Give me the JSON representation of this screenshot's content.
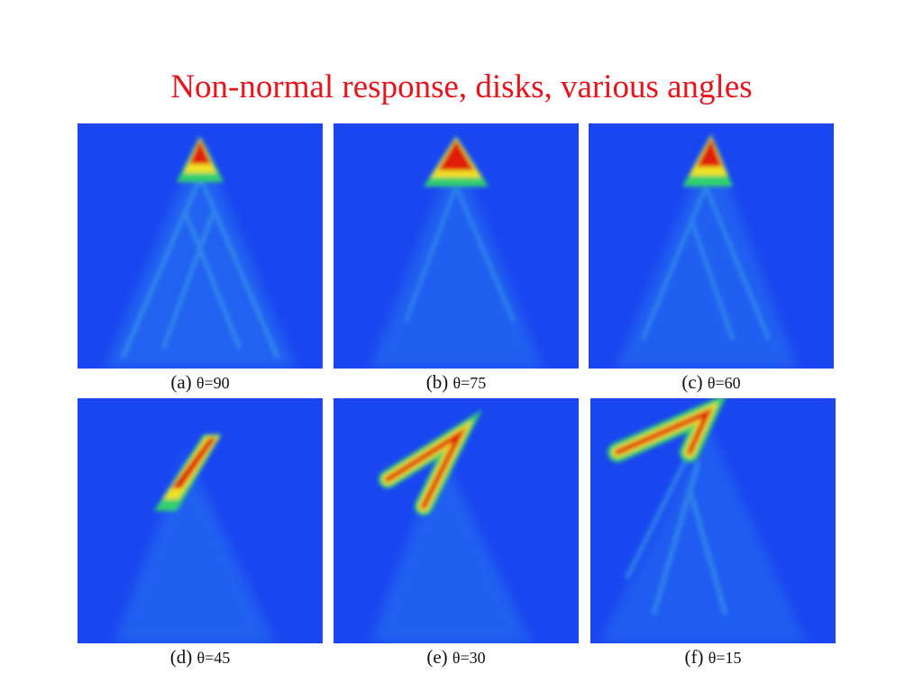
{
  "slide": {
    "title": "Non-normal response, disks, various angles"
  },
  "panels": [
    {
      "letter": "(a)",
      "angle": "θ=90"
    },
    {
      "letter": "(b)",
      "angle": "θ=75"
    },
    {
      "letter": "(c)",
      "angle": "θ=60"
    },
    {
      "letter": "(d)",
      "angle": "θ=45"
    },
    {
      "letter": "(e)",
      "angle": "θ=30"
    },
    {
      "letter": "(f)",
      "angle": "θ=15"
    }
  ],
  "colors": {
    "title": "#e8141c",
    "background_field": "#1a46f0",
    "hot": "#e01a10",
    "warm": "#f0e020",
    "cool": "#30d070"
  }
}
